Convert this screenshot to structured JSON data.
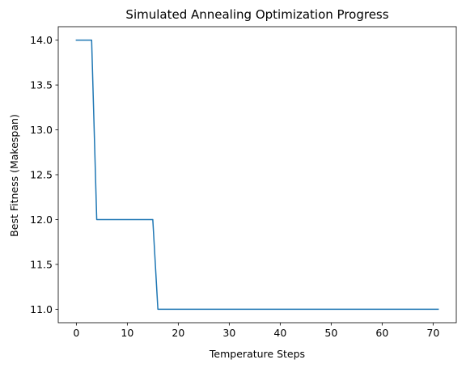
{
  "chart_data": {
    "type": "line",
    "title": "Simulated Annealing Optimization Progress",
    "xlabel": "Temperature Steps",
    "ylabel": "Best Fitness (Makespan)",
    "xlim": [
      -3.55,
      74.55
    ],
    "ylim": [
      10.85,
      14.15
    ],
    "xticks": [
      0,
      10,
      20,
      30,
      40,
      50,
      60,
      70
    ],
    "yticks": [
      11.0,
      11.5,
      12.0,
      12.5,
      13.0,
      13.5,
      14.0
    ],
    "xtick_labels": [
      "0",
      "10",
      "20",
      "30",
      "40",
      "50",
      "60",
      "70"
    ],
    "ytick_labels": [
      "11.0",
      "11.5",
      "12.0",
      "12.5",
      "13.0",
      "13.5",
      "14.0"
    ],
    "grid": false,
    "series": [
      {
        "color": "#1f77b4",
        "x": [
          0,
          1,
          2,
          3,
          4,
          5,
          6,
          7,
          8,
          9,
          10,
          11,
          12,
          13,
          14,
          15,
          16,
          17,
          18,
          19,
          20,
          21,
          22,
          23,
          24,
          25,
          26,
          27,
          28,
          29,
          30,
          31,
          32,
          33,
          34,
          35,
          36,
          37,
          38,
          39,
          40,
          41,
          42,
          43,
          44,
          45,
          46,
          47,
          48,
          49,
          50,
          51,
          52,
          53,
          54,
          55,
          56,
          57,
          58,
          59,
          60,
          61,
          62,
          63,
          64,
          65,
          66,
          67,
          68,
          69,
          70,
          71
        ],
        "y": [
          14,
          14,
          14,
          14,
          12,
          12,
          12,
          12,
          12,
          12,
          12,
          12,
          12,
          12,
          12,
          12,
          11,
          11,
          11,
          11,
          11,
          11,
          11,
          11,
          11,
          11,
          11,
          11,
          11,
          11,
          11,
          11,
          11,
          11,
          11,
          11,
          11,
          11,
          11,
          11,
          11,
          11,
          11,
          11,
          11,
          11,
          11,
          11,
          11,
          11,
          11,
          11,
          11,
          11,
          11,
          11,
          11,
          11,
          11,
          11,
          11,
          11,
          11,
          11,
          11,
          11,
          11,
          11,
          11,
          11,
          11,
          11
        ]
      }
    ]
  }
}
